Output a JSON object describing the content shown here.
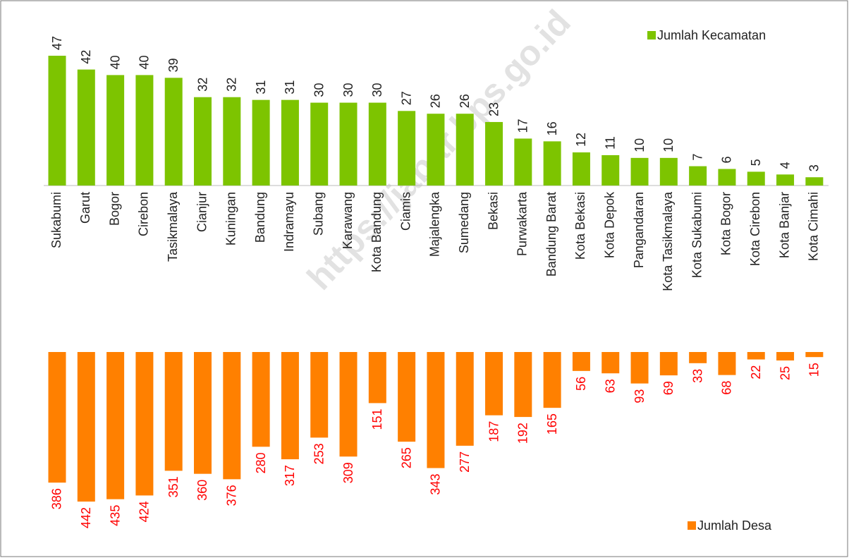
{
  "watermark": "https://jabar.bps.go.id",
  "chart_data": {
    "type": "bar",
    "categories": [
      "Sukabumi",
      "Garut",
      "Bogor",
      "Cirebon",
      "Tasikmalaya",
      "Cianjur",
      "Kuningan",
      "Bandung",
      "Indramayu",
      "Subang",
      "Karawang",
      "Kota Bandung",
      "Ciamis",
      "Majalengka",
      "Sumedang",
      "Bekasi",
      "Purwakarta",
      "Bandung Barat",
      "Kota Bekasi",
      "Kota Depok",
      "Pangandaran",
      "Kota Tasikmalaya",
      "Kota Sukabumi",
      "Kota Bogor",
      "Kota Cirebon",
      "Kota Banjar",
      "Kota Cimahi"
    ],
    "series": [
      {
        "name": "Jumlah Kecamatan",
        "color": "#7dc400",
        "label_color": "#222222",
        "values": [
          47,
          42,
          40,
          40,
          39,
          32,
          32,
          31,
          31,
          30,
          30,
          30,
          27,
          26,
          26,
          23,
          17,
          16,
          12,
          11,
          10,
          10,
          7,
          6,
          5,
          4,
          3
        ]
      },
      {
        "name": "Jumlah Desa",
        "color": "#ff8000",
        "label_color": "#ff0000",
        "axis": "y2",
        "values": [
          386,
          442,
          435,
          424,
          351,
          360,
          376,
          280,
          317,
          253,
          309,
          151,
          265,
          343,
          277,
          187,
          192,
          165,
          56,
          63,
          93,
          69,
          33,
          68,
          22,
          25,
          15
        ]
      }
    ],
    "ylim": [
      0,
      47
    ],
    "y2lim": [
      0,
      442
    ]
  }
}
